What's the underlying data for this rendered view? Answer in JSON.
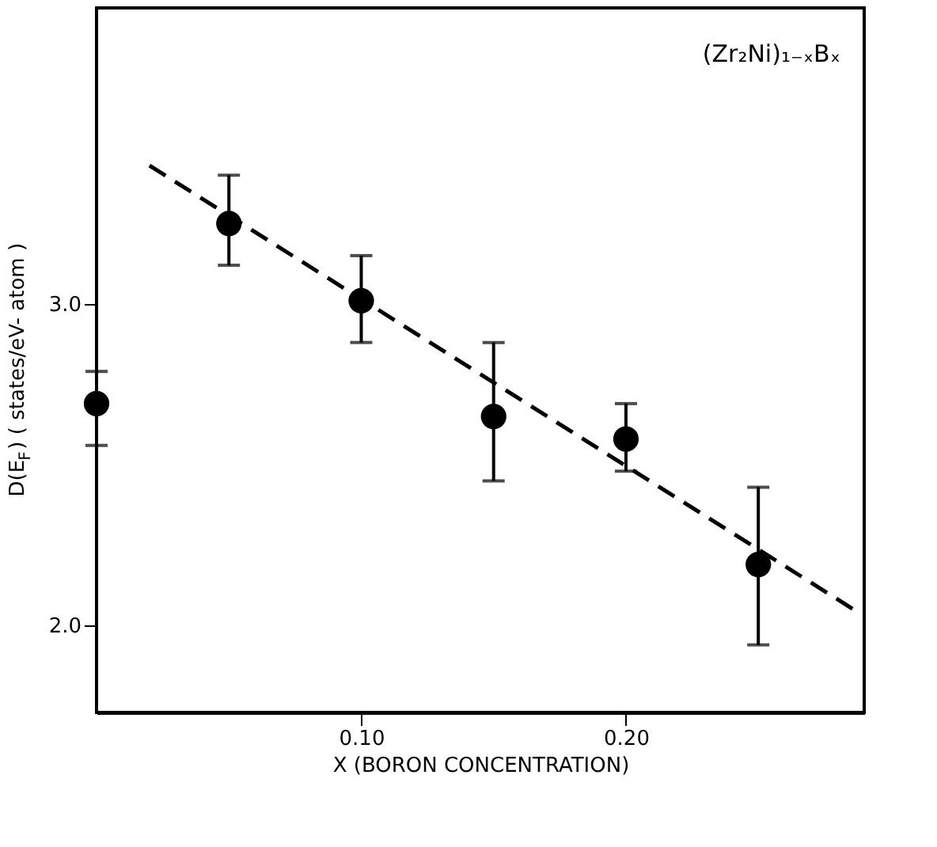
{
  "chart_data": {
    "type": "scatter",
    "xlabel": "X (BORON CONCENTRATION)",
    "ylabel": "D(E$_{F}$)   ( states/eV- atom )",
    "annotations": [
      "(Zr₂Ni)₁₋ₓBₓ"
    ],
    "series": [
      {
        "color": "#000000",
        "marker": "circle",
        "x": [
          0,
          0.05,
          0.1,
          0.15,
          0.2,
          0.25
        ],
        "values": [
          2.69,
          3.25,
          3.01,
          2.65,
          2.58,
          2.19
        ],
        "errors": [
          [
            2.56,
            2.79
          ],
          [
            3.12,
            3.4
          ],
          [
            2.88,
            3.15
          ],
          [
            2.45,
            2.88
          ],
          [
            2.48,
            2.69
          ],
          [
            1.94,
            2.43
          ]
        ]
      },
      {
        "type": "line",
        "color": "#000000",
        "line_style": "dashed",
        "x": [
          0.02,
          0.286
        ],
        "values": [
          3.43,
          2.05
        ]
      }
    ],
    "xlim": [
      0,
      0.29
    ],
    "xticks": [
      {
        "value": 0.1,
        "label": "0.10"
      },
      {
        "value": 0.2,
        "label": "0.20"
      }
    ],
    "ylim": [
      1.73,
      3.92
    ],
    "yticks": [
      {
        "value": 2,
        "label": "2.0"
      },
      {
        "value": 3,
        "label": "3.0"
      }
    ],
    "grid": false
  }
}
